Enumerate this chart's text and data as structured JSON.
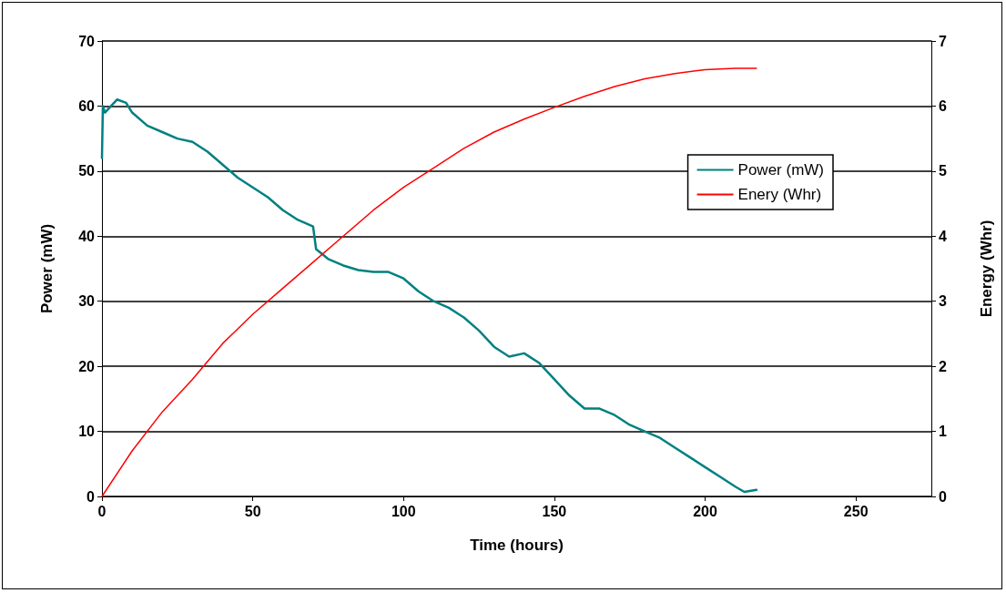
{
  "chart_data": {
    "type": "line",
    "xlabel": "Time (hours)",
    "ylabel": "Power (mW)",
    "y2label": "Energy (Whr)",
    "xlim": [
      0,
      275
    ],
    "xticks": [
      0,
      50,
      100,
      150,
      200,
      250
    ],
    "ylim": [
      0,
      70
    ],
    "yticks": [
      0,
      10,
      20,
      30,
      40,
      50,
      60,
      70
    ],
    "y2lim": [
      0,
      7
    ],
    "y2ticks": [
      0,
      1,
      2,
      3,
      4,
      5,
      6,
      7
    ],
    "grid": "y",
    "legend": "right",
    "marker": "none",
    "line_style": "solid",
    "series": [
      {
        "name": "Power (mW)",
        "color": "#008080",
        "x": [
          0,
          0.3,
          1,
          3,
          5,
          8,
          10,
          15,
          20,
          25,
          30,
          35,
          40,
          45,
          50,
          55,
          60,
          65,
          70,
          71,
          75,
          80,
          85,
          90,
          95,
          100,
          105,
          110,
          115,
          120,
          125,
          130,
          135,
          140,
          145,
          150,
          155,
          160,
          165,
          170,
          175,
          180,
          185,
          190,
          195,
          200,
          205,
          210,
          213,
          217
        ],
        "values": [
          52,
          60,
          59,
          60,
          61,
          60.5,
          59,
          57,
          56,
          55,
          54.5,
          53,
          51,
          49,
          47.5,
          46,
          44,
          42.5,
          41.5,
          38,
          36.5,
          35.5,
          34.8,
          34.5,
          34.5,
          33.5,
          31.5,
          30,
          29,
          27.5,
          25.5,
          23,
          21.5,
          22,
          20.5,
          18,
          15.5,
          13.5,
          13.5,
          12.5,
          11,
          10,
          9,
          7.5,
          6,
          4.5,
          3,
          1.5,
          0.7,
          1
        ]
      },
      {
        "name": "Enery (Whr)",
        "color": "#ff0000",
        "axis": "y2",
        "x": [
          0,
          10,
          20,
          30,
          40,
          50,
          60,
          70,
          80,
          90,
          100,
          110,
          120,
          130,
          140,
          150,
          160,
          170,
          180,
          190,
          200,
          210,
          217
        ],
        "values": [
          0,
          0.7,
          1.3,
          1.8,
          2.35,
          2.8,
          3.2,
          3.6,
          4.0,
          4.4,
          4.75,
          5.05,
          5.35,
          5.6,
          5.8,
          5.98,
          6.15,
          6.3,
          6.42,
          6.5,
          6.56,
          6.58,
          6.58
        ]
      }
    ]
  }
}
